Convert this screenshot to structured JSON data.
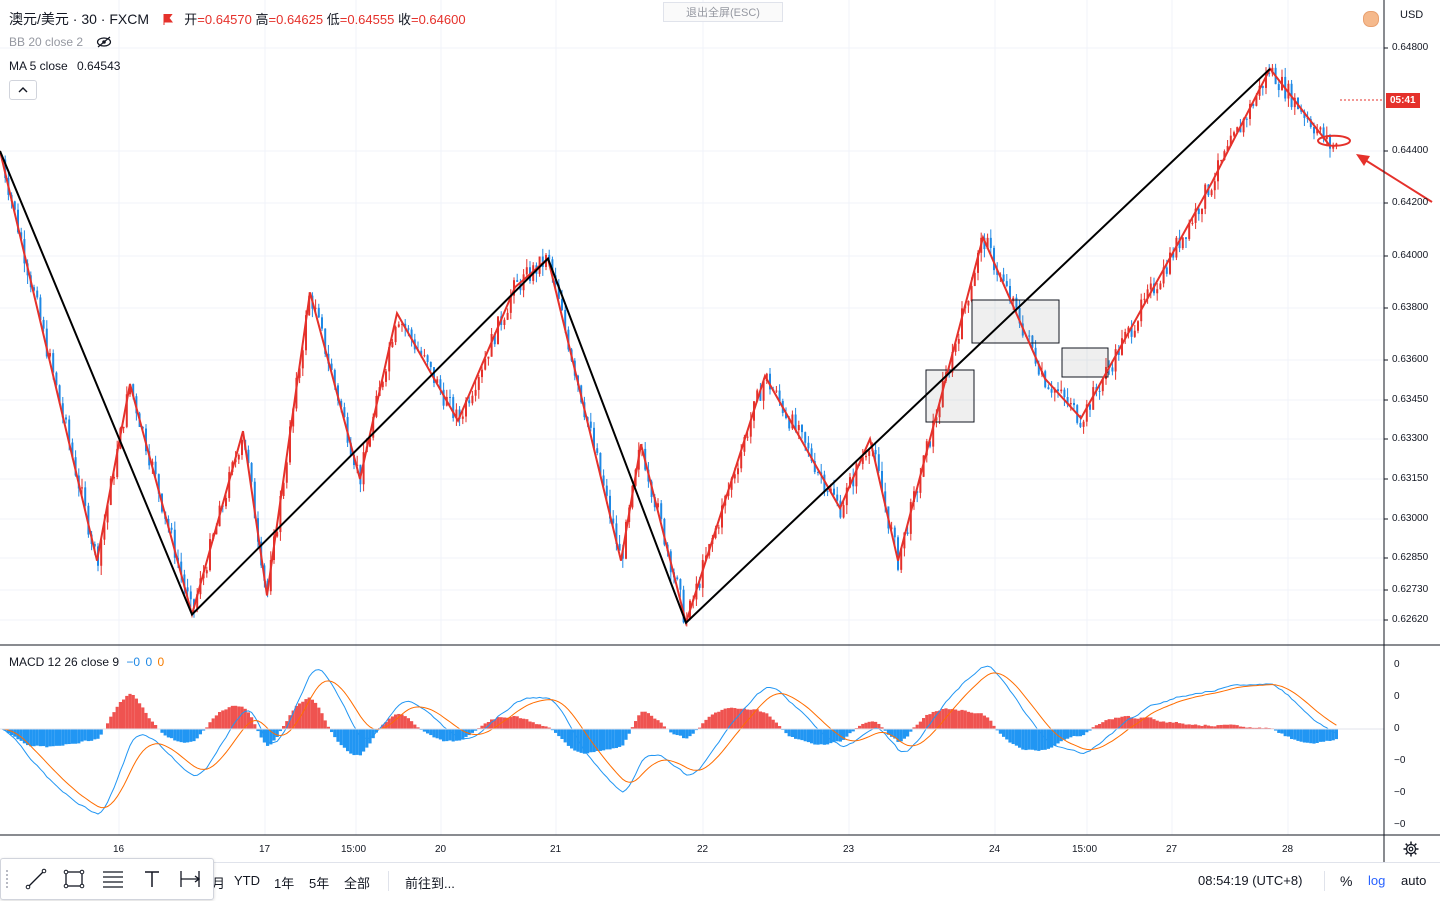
{
  "header": {
    "symbol": "澳元/美元 · 30 · FXCM",
    "open_label": "开",
    "open": "=0.64570",
    "high_label": "高",
    "high": "=0.64625",
    "low_label": "低",
    "low": "=0.64555",
    "close_label": "收",
    "close": "=0.64600",
    "exit_fullscreen": "退出全屏(ESC)",
    "bb_indicator": "BB 20 close 2",
    "ma_indicator": "MA 5 close",
    "ma_value": "0.64543",
    "macd_indicator": "MACD 12 26 close 9",
    "macd_values": [
      "−0",
      "0",
      "0"
    ]
  },
  "currency": "USD",
  "last_price_tag": "05:41",
  "y_ticks": [
    "0.64800",
    "0.64400",
    "0.64200",
    "0.64000",
    "0.63800",
    "0.63600",
    "0.63450",
    "0.63300",
    "0.63150",
    "0.63000",
    "0.62850",
    "0.62730",
    "0.62620"
  ],
  "macd_ticks": [
    "0",
    "0",
    "0",
    "−0",
    "−0",
    "−0"
  ],
  "x_ticks": [
    "16",
    "17",
    "15:00",
    "20",
    "21",
    "22",
    "23",
    "24",
    "15:00",
    "27",
    "28"
  ],
  "bottom_bar": {
    "ranges": [
      "月",
      "YTD",
      "1年",
      "5年",
      "全部"
    ],
    "goto": "前往到...",
    "clock": "08:54:19 (UTC+8)",
    "percent": "%",
    "log": "log",
    "auto": "auto"
  },
  "icons": {
    "flag": "flag-icon",
    "eye": "eye-off-icon",
    "chevron": "chevron-up-icon",
    "settings": "gear-icon",
    "line": "trend-line-icon",
    "rect": "rectangle-icon",
    "fib": "fib-levels-icon",
    "text": "text-icon",
    "measure": "measure-icon"
  },
  "colors": {
    "up": "#e5312b",
    "down": "#1e88e5",
    "accent": "#e5312b",
    "zigzag_major": "#000000",
    "zigzag_minor": "#e5312b"
  },
  "chart_data": {
    "type": "line",
    "title": "澳元/美元 · 30 · FXCM",
    "xlabel": "",
    "ylabel": "",
    "x_categories": [
      "16",
      "17",
      "15:00",
      "20",
      "21",
      "22",
      "23",
      "24",
      "15:00",
      "27",
      "28"
    ],
    "ylim": [
      0.6258,
      0.649
    ],
    "y_scale": "log",
    "grid": true,
    "legend": "none",
    "series": [
      {
        "name": "zigzag-major",
        "color": "#000000",
        "points": [
          [
            0,
            0.644
          ],
          [
            192,
            0.6264
          ],
          [
            548,
            0.6399
          ],
          [
            686,
            0.6261
          ],
          [
            1270,
            0.6472
          ]
        ]
      },
      {
        "name": "zigzag-minor",
        "color": "#e5312b",
        "points": [
          [
            0,
            0.644
          ],
          [
            97,
            0.6284
          ],
          [
            130,
            0.6351
          ],
          [
            192,
            0.6264
          ],
          [
            243,
            0.6333
          ],
          [
            267,
            0.6271
          ],
          [
            310,
            0.6386
          ],
          [
            360,
            0.6315
          ],
          [
            397,
            0.6378
          ],
          [
            458,
            0.6337
          ],
          [
            515,
            0.6388
          ],
          [
            548,
            0.6399
          ],
          [
            621,
            0.6284
          ],
          [
            641,
            0.6328
          ],
          [
            686,
            0.6261
          ],
          [
            765,
            0.6354
          ],
          [
            840,
            0.6304
          ],
          [
            870,
            0.633
          ],
          [
            898,
            0.6284
          ],
          [
            983,
            0.6407
          ],
          [
            1045,
            0.6353
          ],
          [
            1081,
            0.6338
          ],
          [
            1212,
            0.6428
          ],
          [
            1270,
            0.6472
          ],
          [
            1330,
            0.6442
          ]
        ]
      }
    ],
    "annotations": {
      "boxes": 3,
      "ellipse_at_price": 0.6444,
      "arrow": "points to last low"
    },
    "macd": {
      "name": "MACD 12 26 close 9",
      "series": [
        "macd",
        "signal",
        "histogram"
      ]
    }
  }
}
